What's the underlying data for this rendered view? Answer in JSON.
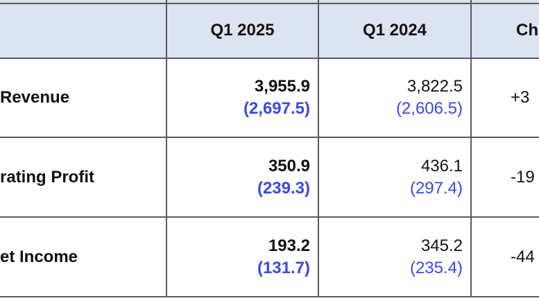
{
  "header": {
    "columns": [
      "Q1 2025",
      "Q1 2024",
      "Ch"
    ]
  },
  "rows": [
    {
      "label": "Revenue",
      "q1_2025": "3,955.9",
      "q1_2025_sub": "(2,697.5)",
      "q1_2024": "3,822.5",
      "q1_2024_sub": "(2,606.5)",
      "change": "+3"
    },
    {
      "label": "rating Profit",
      "q1_2025": "350.9",
      "q1_2025_sub": "(239.3)",
      "q1_2024": "436.1",
      "q1_2024_sub": "(297.4)",
      "change": "-19"
    },
    {
      "label": "et Income",
      "q1_2025": "193.2",
      "q1_2025_sub": "(131.7)",
      "q1_2024": "345.2",
      "q1_2024_sub": "(235.4)",
      "change": "-44"
    }
  ]
}
